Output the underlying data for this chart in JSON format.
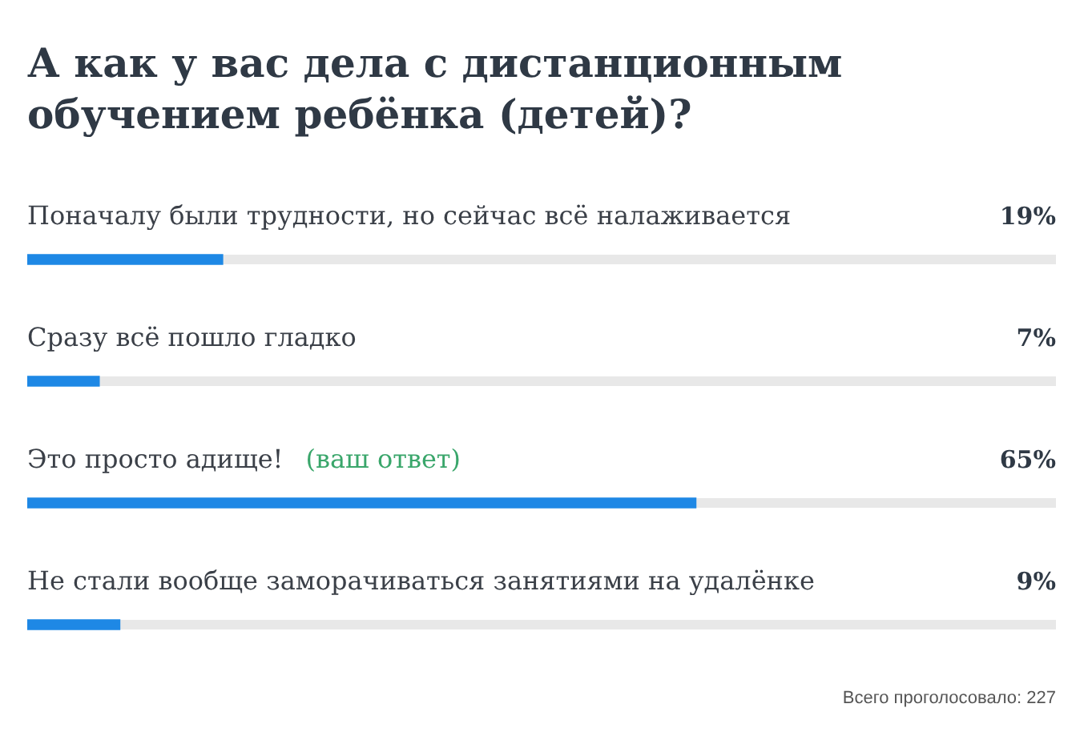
{
  "chart_data": {
    "type": "bar",
    "orientation": "horizontal",
    "title": "А как у вас дела с дистанционным обучением ребёнка (детей)?",
    "categories": [
      "Поначалу были трудности, но сейчас всё налаживается",
      "Сразу всё пошло гладко",
      "Это просто адище!",
      "Не стали вообще заморачиваться занятиями на удалёнке"
    ],
    "values": [
      19,
      7,
      65,
      9
    ],
    "value_labels": [
      "19%",
      "7%",
      "65%",
      "9%"
    ],
    "color": "#1e88e5",
    "xlim": [
      0,
      100
    ],
    "tick_labels": "y",
    "annotations": [
      {
        "text": "(ваш ответ)",
        "y": "Это просто адище!"
      },
      "Всего проголосовало: 227"
    ]
  }
}
